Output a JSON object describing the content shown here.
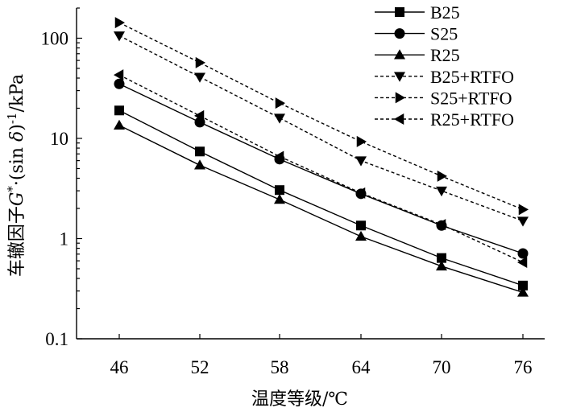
{
  "chart_data": {
    "type": "line",
    "title": "",
    "xlabel": "温度等级/℃",
    "ylabel": "车辙因子G*·(sin δ)⁻¹/kPa",
    "ylabel_parts": {
      "prefix": "车辙因子",
      "g": "G",
      "star": "*",
      "mid": "·(sin ",
      "delta": "δ",
      "close": ")",
      "exp": "-1",
      "unit": "/kPa"
    },
    "yscale": "log",
    "ylim": [
      0.1,
      200
    ],
    "yticks": [
      0.1,
      1,
      10,
      100
    ],
    "ytick_labels": [
      "0.1",
      "1",
      "10",
      "100"
    ],
    "x": [
      46,
      52,
      58,
      64,
      70,
      76
    ],
    "xtick_labels": [
      "46",
      "52",
      "58",
      "64",
      "70",
      "76"
    ],
    "legend_position": "top-right",
    "series": [
      {
        "name": "B25",
        "marker": "square",
        "dashed": false,
        "values": [
          19.0,
          7.4,
          3.05,
          1.35,
          0.64,
          0.34
        ]
      },
      {
        "name": "S25",
        "marker": "circle",
        "dashed": false,
        "values": [
          35.0,
          14.5,
          6.2,
          2.8,
          1.35,
          0.71
        ]
      },
      {
        "name": "R25",
        "marker": "triangle-up",
        "dashed": false,
        "values": [
          13.5,
          5.4,
          2.45,
          1.05,
          0.53,
          0.29
        ]
      },
      {
        "name": "B25+RTFO",
        "marker": "triangle-down",
        "dashed": true,
        "values": [
          106.0,
          41.0,
          16.0,
          6.0,
          3.0,
          1.5
        ]
      },
      {
        "name": "S25+RTFO",
        "marker": "triangle-right",
        "dashed": true,
        "values": [
          143.0,
          57.0,
          22.5,
          9.3,
          4.2,
          1.95
        ]
      },
      {
        "name": "R25+RTFO",
        "marker": "triangle-left",
        "dashed": true,
        "values": [
          43.0,
          16.8,
          6.6,
          2.85,
          1.38,
          0.58
        ]
      }
    ]
  }
}
